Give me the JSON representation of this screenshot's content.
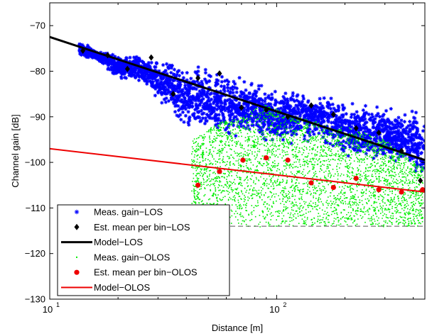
{
  "chart_data": {
    "type": "scatter",
    "title": "",
    "xlabel": "Distance [m]",
    "ylabel": "Channel gain [dB]",
    "xscale": "log",
    "xlim": [
      10,
      450
    ],
    "ylim": [
      -130,
      -65
    ],
    "grid": false,
    "legend_position": "bottom-left",
    "x_ticks": [
      {
        "value": 10,
        "base": "10",
        "exp": "1"
      },
      {
        "value": 100,
        "base": "10",
        "exp": "2"
      }
    ],
    "y_ticks": [
      {
        "value": -70,
        "label": "−70"
      },
      {
        "value": -80,
        "label": "−80"
      },
      {
        "value": -90,
        "label": "−90"
      },
      {
        "value": -100,
        "label": "−100"
      },
      {
        "value": -110,
        "label": "−110"
      },
      {
        "value": -120,
        "label": "−120"
      },
      {
        "value": -130,
        "label": "−130"
      }
    ],
    "series": [
      {
        "name": "Meas. gain−LOS",
        "kind": "scatter-cloud",
        "color": "#0000ff",
        "marker": "star",
        "envelope": [
          {
            "x": 13.5,
            "lo": -77,
            "hi": -73
          },
          {
            "x": 16,
            "lo": -78,
            "hi": -75
          },
          {
            "x": 20,
            "lo": -82,
            "hi": -76
          },
          {
            "x": 25,
            "lo": -83,
            "hi": -76
          },
          {
            "x": 30,
            "lo": -87,
            "hi": -77
          },
          {
            "x": 35,
            "lo": -91,
            "hi": -77
          },
          {
            "x": 40,
            "lo": -94,
            "hi": -78
          },
          {
            "x": 50,
            "lo": -95,
            "hi": -78
          },
          {
            "x": 60,
            "lo": -96,
            "hi": -79
          },
          {
            "x": 80,
            "lo": -95,
            "hi": -82
          },
          {
            "x": 100,
            "lo": -97,
            "hi": -83
          },
          {
            "x": 150,
            "lo": -96,
            "hi": -84
          },
          {
            "x": 200,
            "lo": -100,
            "hi": -85
          },
          {
            "x": 300,
            "lo": -100,
            "hi": -87
          },
          {
            "x": 400,
            "lo": -104,
            "hi": -87
          },
          {
            "x": 450,
            "lo": -106,
            "hi": -89
          }
        ]
      },
      {
        "name": "Est. mean per bin−LOS",
        "kind": "markers",
        "color": "#000000",
        "marker": "diamond",
        "x": [
          14,
          18,
          22,
          28,
          35,
          45,
          56,
          70,
          90,
          112,
          142,
          178,
          224,
          282,
          355,
          430
        ],
        "y": [
          -75.5,
          -76.5,
          -79.5,
          -77,
          -85,
          -81.5,
          -80.5,
          -88,
          -88.5,
          -90,
          -87.5,
          -89.5,
          -92.5,
          -93.5,
          -97.5,
          -104
        ]
      },
      {
        "name": "Model−LOS",
        "kind": "line",
        "color": "#000000",
        "width": 3,
        "x": [
          10,
          450
        ],
        "y": [
          -72.5,
          -99.5
        ]
      },
      {
        "name": "Meas. gain−OLOS",
        "kind": "scatter-cloud",
        "color": "#00ee00",
        "marker": "dot",
        "envelope": [
          {
            "x": 42,
            "lo": -112,
            "hi": -95
          },
          {
            "x": 55,
            "lo": -114,
            "hi": -91
          },
          {
            "x": 70,
            "lo": -114,
            "hi": -90
          },
          {
            "x": 85,
            "lo": -114,
            "hi": -87
          },
          {
            "x": 110,
            "lo": -114,
            "hi": -89
          },
          {
            "x": 150,
            "lo": -114,
            "hi": -91
          },
          {
            "x": 200,
            "lo": -114,
            "hi": -92
          },
          {
            "x": 300,
            "lo": -114,
            "hi": -95
          },
          {
            "x": 440,
            "lo": -114,
            "hi": -101
          }
        ]
      },
      {
        "name": "Est. mean per bin−OLOS",
        "kind": "markers",
        "color": "#ee0000",
        "marker": "circle",
        "x": [
          45,
          56,
          71,
          90,
          112,
          142,
          178,
          224,
          282,
          355,
          440
        ],
        "y": [
          -105,
          -102,
          -99.5,
          -99,
          -99.5,
          -104.5,
          -105.5,
          -103.5,
          -106,
          -106.5,
          -106
        ]
      },
      {
        "name": "Model−OLOS",
        "kind": "line",
        "color": "#ee0000",
        "width": 2,
        "x": [
          10,
          450
        ],
        "y": [
          -97,
          -106.5
        ]
      }
    ],
    "reference_lines": [
      {
        "style": "dashed",
        "color": "#555555",
        "x": [
          42,
          450
        ],
        "y": [
          -114,
          -114
        ]
      }
    ]
  }
}
